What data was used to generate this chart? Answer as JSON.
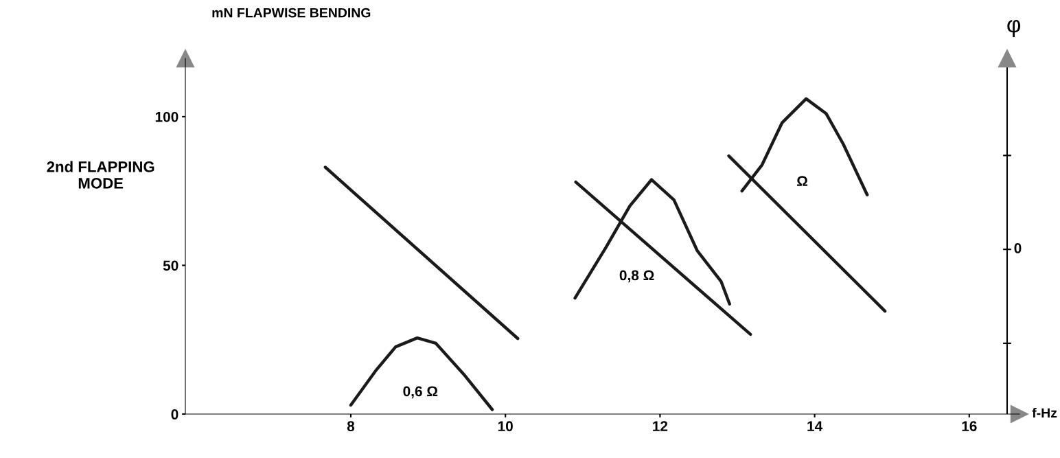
{
  "chart_data": {
    "type": "line",
    "ylabel": "mN FLAPWISE BENDING",
    "y2label": "φ",
    "xlabel": "f-Hz",
    "xlim": [
      5.86,
      16.65
    ],
    "xticks": [
      8,
      10,
      12,
      14,
      16
    ],
    "ylim": [
      0,
      119.6
    ],
    "yticks": [
      0,
      50,
      100
    ],
    "grid": false,
    "marker": "none",
    "line_style": "solid",
    "ref_lines": [
      {
        "axis": "x",
        "value": 16.49,
        "color": "#000000",
        "line_style": "solid"
      }
    ],
    "series": [
      {
        "color": "#1a1a1a",
        "x": [
          8.0,
          8.32,
          8.58,
          8.86,
          9.1,
          9.46,
          9.83
        ],
        "values": [
          3,
          14.5,
          22.6,
          25.6,
          23.8,
          13.4,
          1.5
        ]
      },
      {
        "color": "#1a1a1a",
        "x": [
          7.67,
          10.16
        ],
        "values": [
          83,
          25.4
        ]
      },
      {
        "color": "#1a1a1a",
        "x": [
          10.9,
          11.3,
          11.61,
          11.89,
          12.18,
          12.48,
          12.79,
          12.9
        ],
        "values": [
          39,
          56,
          70,
          78.8,
          72,
          55,
          44.6,
          37
        ]
      },
      {
        "color": "#1a1a1a",
        "x": [
          10.91,
          13.17
        ],
        "values": [
          78,
          26.8
        ]
      },
      {
        "color": "#1a1a1a",
        "x": [
          13.06,
          13.32,
          13.58,
          13.89,
          14.15,
          14.37,
          14.68
        ],
        "values": [
          75,
          83.8,
          98,
          106,
          101,
          90.8,
          73.7
        ]
      },
      {
        "color": "#1a1a1a",
        "x": [
          12.89,
          14.91
        ],
        "values": [
          86.8,
          34.6
        ]
      }
    ],
    "annotations": [
      "0,6 Ω",
      "0,8 Ω",
      "Ω",
      "2nd FLAPPING\nMODE",
      "0"
    ]
  }
}
